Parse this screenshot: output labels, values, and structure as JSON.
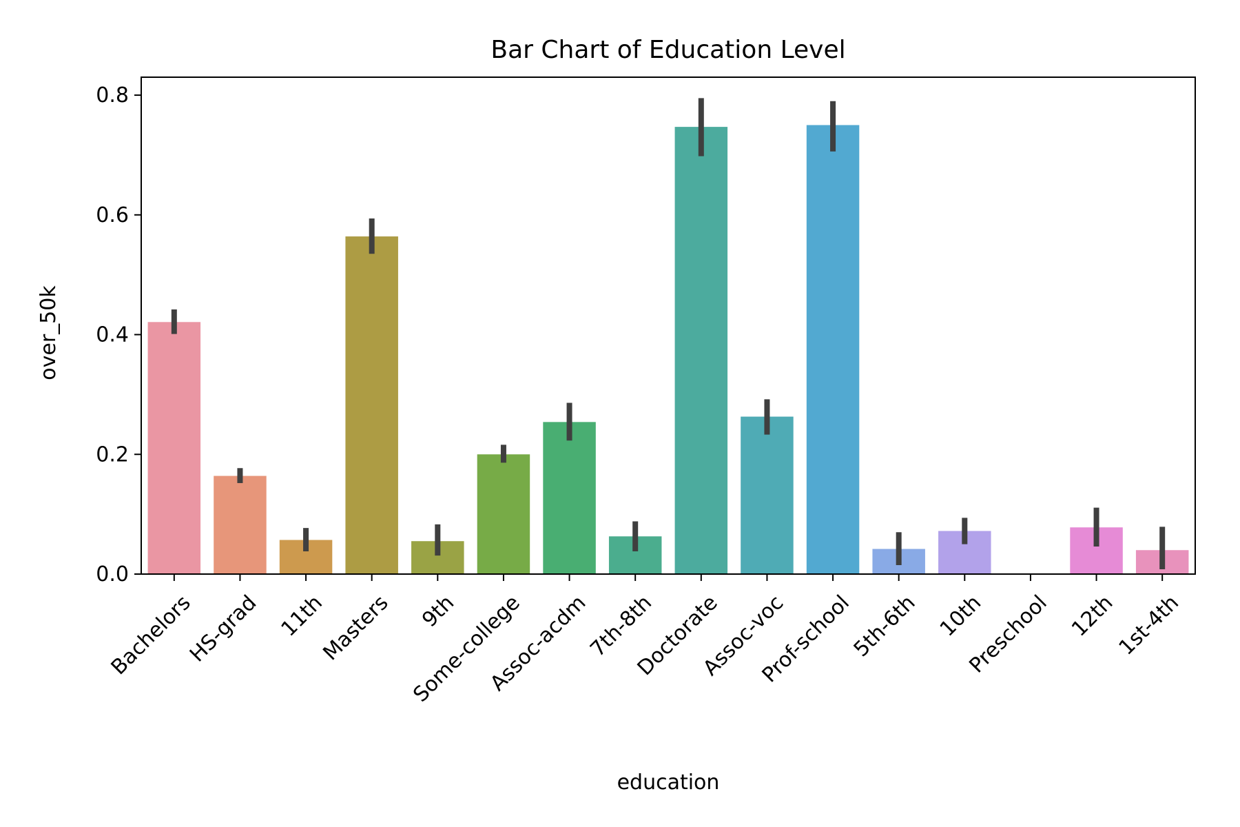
{
  "chart_data": {
    "type": "bar",
    "title": "Bar Chart of Education Level",
    "xlabel": "education",
    "ylabel": "over_50k",
    "ylim": [
      0,
      0.83
    ],
    "yticks": [
      0.0,
      0.2,
      0.4,
      0.6,
      0.8
    ],
    "ytick_labels": [
      "0.0",
      "0.2",
      "0.4",
      "0.6",
      "0.8"
    ],
    "grid": false,
    "legend": "none",
    "categories": [
      "Bachelors",
      "HS-grad",
      "11th",
      "Masters",
      "9th",
      "Some-college",
      "Assoc-acdm",
      "7th-8th",
      "Doctorate",
      "Assoc-voc",
      "Prof-school",
      "5th-6th",
      "10th",
      "Preschool",
      "12th",
      "1st-4th"
    ],
    "values": [
      0.421,
      0.164,
      0.057,
      0.564,
      0.055,
      0.2,
      0.254,
      0.063,
      0.747,
      0.263,
      0.75,
      0.042,
      0.072,
      0.0,
      0.078,
      0.04
    ],
    "ci_lower": [
      0.401,
      0.152,
      0.038,
      0.535,
      0.031,
      0.186,
      0.223,
      0.038,
      0.698,
      0.233,
      0.706,
      0.015,
      0.05,
      0.0,
      0.046,
      0.008
    ],
    "ci_upper": [
      0.442,
      0.177,
      0.077,
      0.594,
      0.083,
      0.216,
      0.286,
      0.088,
      0.795,
      0.292,
      0.79,
      0.07,
      0.094,
      0.0,
      0.111,
      0.079
    ],
    "colors": [
      "#ea96a3",
      "#e7967a",
      "#cd9a4e",
      "#ad9c44",
      "#9aa345",
      "#77ab47",
      "#49ae72",
      "#4bad8e",
      "#4cab9e",
      "#4fabb5",
      "#52a9d1",
      "#89aae6",
      "#b2a2ea",
      "#d696e8",
      "#e68bd6",
      "#e892bc"
    ],
    "errorbar_color": "#3f3f3f"
  }
}
